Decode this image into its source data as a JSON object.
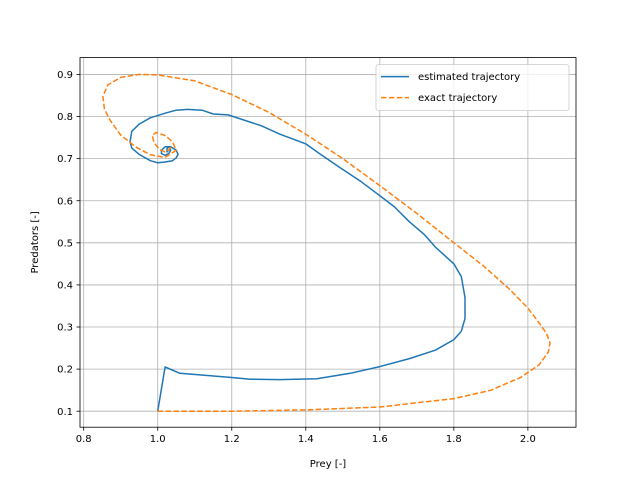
{
  "chart_data": {
    "type": "line",
    "title": "",
    "xlabel": "Prey [-]",
    "ylabel": "Predators [-]",
    "xlim": [
      0.79,
      2.13
    ],
    "ylim": [
      0.062,
      0.94
    ],
    "xticks": [
      0.8,
      1.0,
      1.2,
      1.4,
      1.6,
      1.8,
      2.0
    ],
    "yticks": [
      0.1,
      0.2,
      0.3,
      0.4,
      0.5,
      0.6,
      0.7,
      0.8,
      0.9
    ],
    "grid": true,
    "legend_position": "top-right",
    "series": [
      {
        "name": "estimated trajectory",
        "color": "#1f77b4",
        "style": "solid",
        "x": [
          1.0,
          1.02,
          1.06,
          1.2,
          1.25,
          1.33,
          1.43,
          1.52,
          1.6,
          1.68,
          1.75,
          1.8,
          1.82,
          1.83,
          1.83,
          1.82,
          1.8,
          1.75,
          1.72,
          1.68,
          1.64,
          1.6,
          1.55,
          1.49,
          1.44,
          1.4,
          1.37,
          1.33,
          1.28,
          1.19,
          1.15,
          1.12,
          1.08,
          1.05,
          1.02,
          0.98,
          0.95,
          0.93,
          0.925,
          0.93,
          0.95,
          0.98,
          1.0,
          1.02,
          1.04,
          1.05,
          1.055,
          1.05,
          1.035,
          1.02,
          1.01,
          1.01,
          1.02,
          1.03,
          1.035,
          1.03,
          1.025,
          1.025,
          1.03
        ],
        "y": [
          0.1,
          0.205,
          0.19,
          0.18,
          0.176,
          0.175,
          0.177,
          0.19,
          0.206,
          0.225,
          0.245,
          0.27,
          0.29,
          0.32,
          0.37,
          0.42,
          0.45,
          0.49,
          0.52,
          0.55,
          0.585,
          0.612,
          0.645,
          0.68,
          0.71,
          0.735,
          0.745,
          0.758,
          0.778,
          0.804,
          0.806,
          0.815,
          0.817,
          0.815,
          0.808,
          0.797,
          0.782,
          0.765,
          0.74,
          0.725,
          0.71,
          0.695,
          0.69,
          0.692,
          0.695,
          0.702,
          0.71,
          0.72,
          0.728,
          0.728,
          0.72,
          0.712,
          0.708,
          0.712,
          0.72,
          0.728,
          0.724,
          0.716,
          0.72
        ]
      },
      {
        "name": "exact trajectory",
        "color": "#ff7f0e",
        "style": "dashed",
        "x": [
          1.0,
          1.2,
          1.4,
          1.6,
          1.8,
          1.9,
          1.98,
          2.03,
          2.055,
          2.06,
          2.05,
          2.03,
          2.0,
          1.95,
          1.88,
          1.8,
          1.7,
          1.6,
          1.5,
          1.4,
          1.3,
          1.2,
          1.1,
          1.0,
          0.95,
          0.9,
          0.865,
          0.852,
          0.856,
          0.872,
          0.9,
          0.94,
          0.98,
          1.02,
          1.05,
          1.04,
          1.02,
          0.995,
          0.985,
          0.99,
          1.005,
          1.02,
          1.03,
          1.035
        ],
        "y": [
          0.1,
          0.1,
          0.103,
          0.11,
          0.13,
          0.15,
          0.18,
          0.21,
          0.24,
          0.262,
          0.285,
          0.31,
          0.345,
          0.39,
          0.445,
          0.5,
          0.57,
          0.636,
          0.7,
          0.758,
          0.81,
          0.852,
          0.885,
          0.899,
          0.9,
          0.893,
          0.875,
          0.848,
          0.818,
          0.79,
          0.756,
          0.728,
          0.709,
          0.703,
          0.72,
          0.74,
          0.755,
          0.762,
          0.755,
          0.738,
          0.722,
          0.716,
          0.72,
          0.728
        ]
      }
    ]
  }
}
